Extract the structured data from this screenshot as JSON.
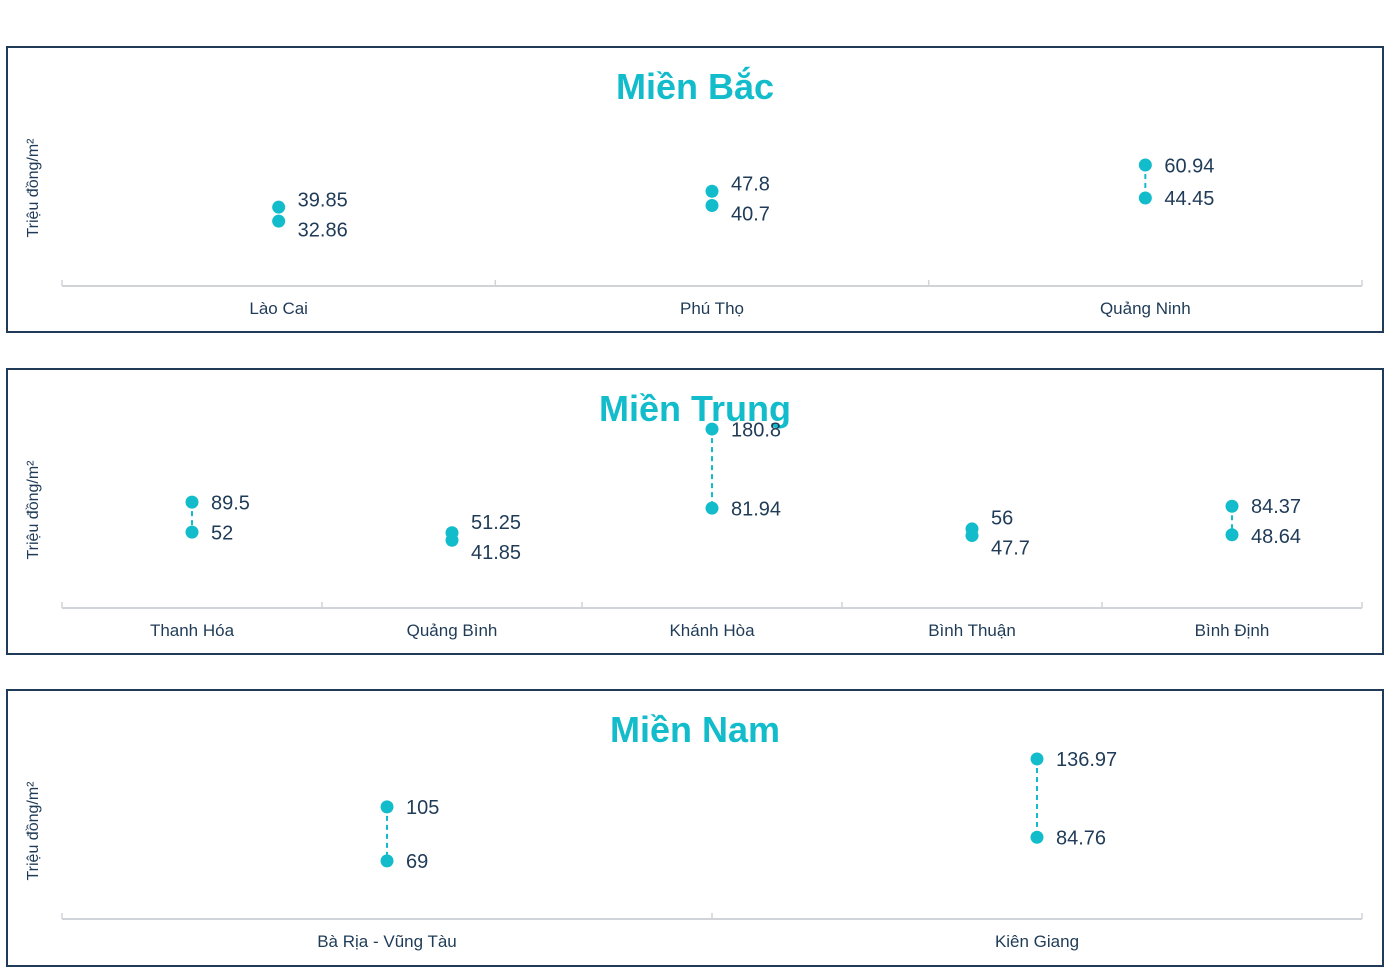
{
  "chart_data": [
    {
      "type": "scatter",
      "title": "Miền Bắc",
      "ylabel": "Triệu đồng/m²",
      "categories": [
        "Lào Cai",
        "Phú Thọ",
        "Quảng Ninh"
      ],
      "high": [
        39.85,
        47.8,
        60.94
      ],
      "low": [
        32.86,
        40.7,
        44.45
      ],
      "grid": false,
      "colors": {
        "point": "#13bccb",
        "text": "#1f3b57",
        "axis": "#d0d4d8"
      }
    },
    {
      "type": "scatter",
      "title": "Miền Trung",
      "ylabel": "Triệu đồng/m²",
      "categories": [
        "Thanh Hóa",
        "Quảng Bình",
        "Khánh Hòa",
        "Bình Thuận",
        "Bình Định"
      ],
      "high": [
        89.5,
        51.25,
        180.8,
        56,
        84.37
      ],
      "low": [
        52,
        41.85,
        81.94,
        47.7,
        48.64
      ],
      "grid": false,
      "colors": {
        "point": "#13bccb",
        "text": "#1f3b57",
        "axis": "#d0d4d8"
      }
    },
    {
      "type": "scatter",
      "title": "Miền Nam",
      "ylabel": "Triệu đồng/m²",
      "categories": [
        "Bà Rịa - Vũng Tàu",
        "Kiên Giang"
      ],
      "high": [
        105,
        136.97
      ],
      "low": [
        69,
        84.76
      ],
      "grid": false,
      "colors": {
        "point": "#13bccb",
        "text": "#1f3b57",
        "axis": "#d0d4d8"
      }
    }
  ]
}
